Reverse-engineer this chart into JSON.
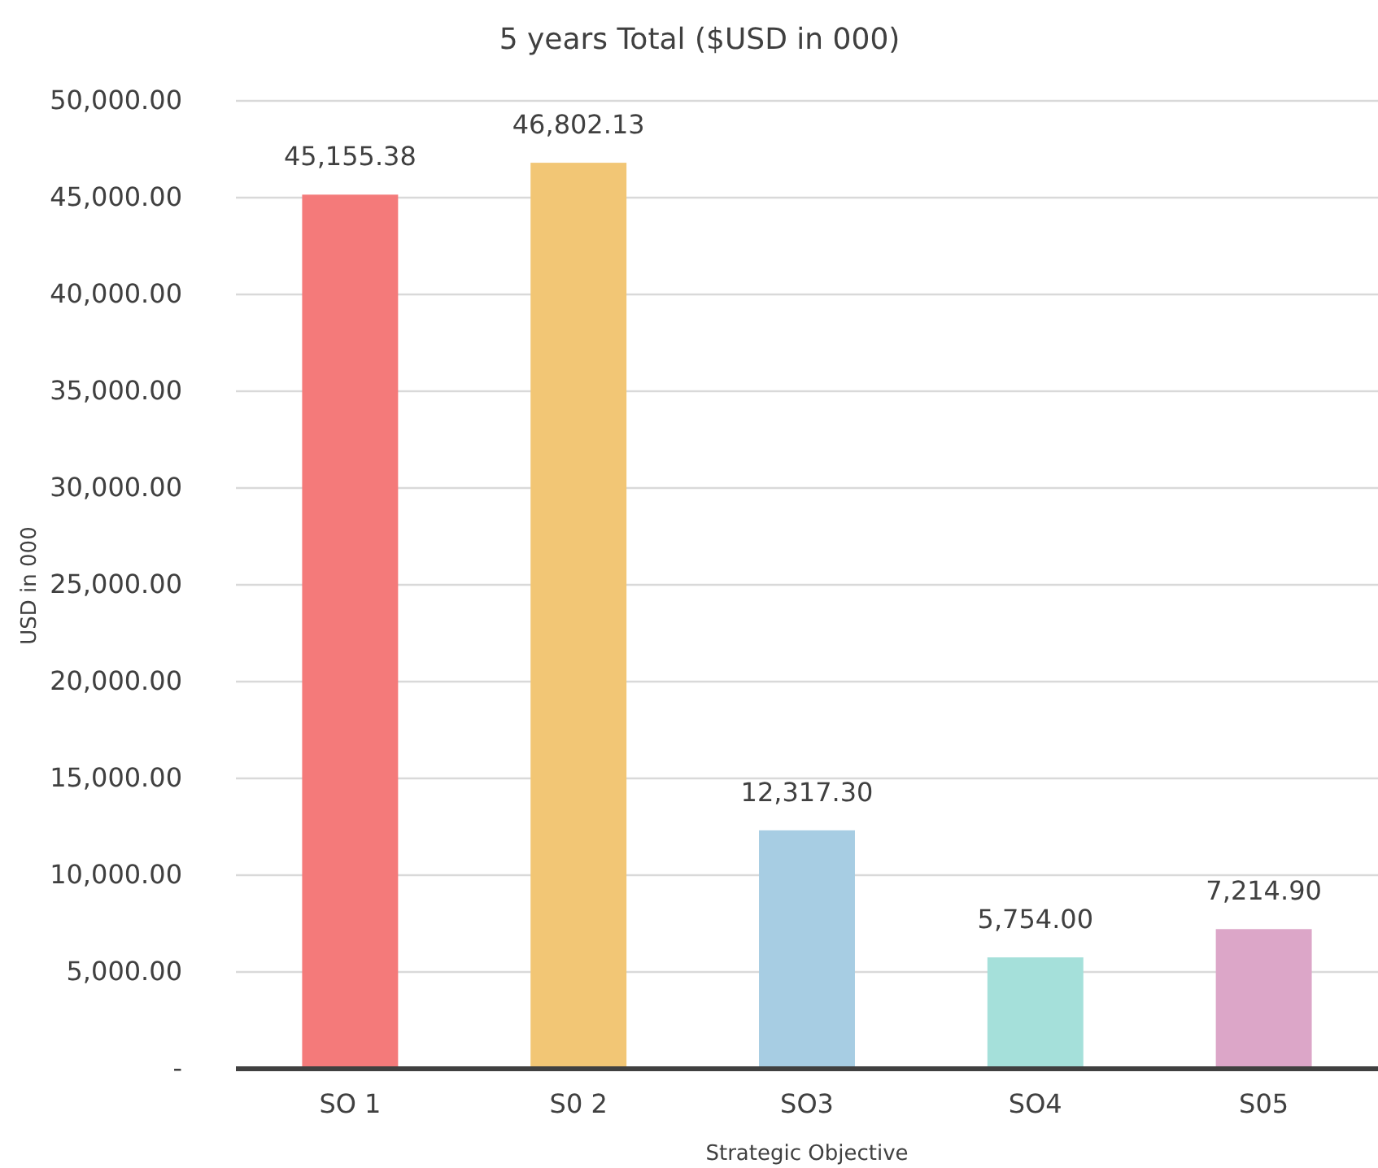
{
  "chart_data": {
    "type": "bar",
    "title": "5 years Total ($USD in 000)",
    "xlabel": "Strategic Objective",
    "ylabel": "USD in 000",
    "categories": [
      "SO 1",
      "S0 2",
      "SO3",
      "SO4",
      "S05"
    ],
    "values": [
      45155.38,
      46802.13,
      12317.3,
      5754,
      7214.9
    ],
    "value_labels": [
      "45,155.38",
      "46,802.13",
      "12,317.30",
      "5,754.00",
      "7,214.90"
    ],
    "colors": [
      "#f47a7a",
      "#f2c675",
      "#a7cde3",
      "#a5e0da",
      "#dca6c8"
    ],
    "ylim": [
      0,
      50000
    ],
    "yticks": [
      {
        "value": 0,
        "label": "-"
      },
      {
        "value": 5000,
        "label": "5,000.00"
      },
      {
        "value": 10000,
        "label": "10,000.00"
      },
      {
        "value": 15000,
        "label": "15,000.00"
      },
      {
        "value": 20000,
        "label": "20,000.00"
      },
      {
        "value": 25000,
        "label": "25,000.00"
      },
      {
        "value": 30000,
        "label": "30,000.00"
      },
      {
        "value": 35000,
        "label": "35,000.00"
      },
      {
        "value": 40000,
        "label": "40,000.00"
      },
      {
        "value": 45000,
        "label": "45,000.00"
      },
      {
        "value": 50000,
        "label": "50,000.00"
      }
    ],
    "grid": "y"
  }
}
